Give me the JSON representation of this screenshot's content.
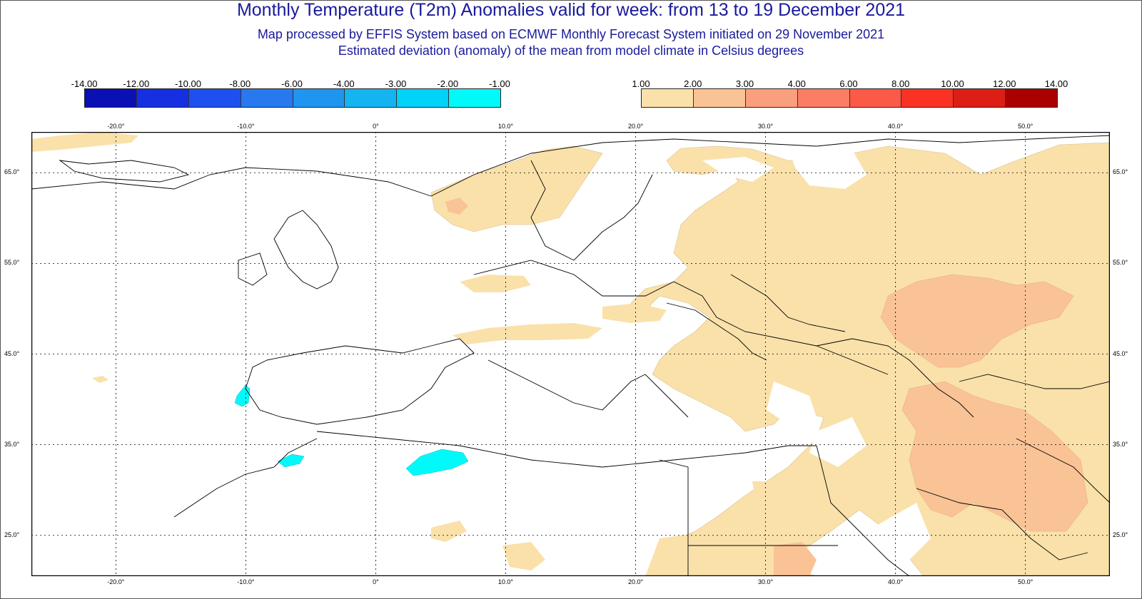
{
  "title": "Monthly Temperature (T2m) Anomalies valid for week: from 13 to 19 December 2021",
  "subtitle1": "Map processed by EFFIS System based on ECMWF Monthly Forecast System initiated on 29 November 2021",
  "subtitle2": "Estimated deviation (anomaly) of the mean from model climate in Celsius degrees",
  "legend_cold": {
    "labels": [
      "-14.00",
      "-12.00",
      "-10.00",
      "-8.00",
      "-6.00",
      "-4.00",
      "-3.00",
      "-2.00",
      "-1.00"
    ],
    "colors": [
      "#0a10b4",
      "#1430e0",
      "#1e50f0",
      "#2878f0",
      "#1e96f0",
      "#14b4f0",
      "#00d2f8",
      "#00fafa"
    ]
  },
  "legend_warm": {
    "labels": [
      "1.00",
      "2.00",
      "3.00",
      "4.00",
      "6.00",
      "8.00",
      "10.00",
      "12.00",
      "14.00"
    ],
    "colors": [
      "#fae1aa",
      "#fac396",
      "#fa9f7d",
      "#fa7d64",
      "#fa5a46",
      "#fa3223",
      "#dc1e14",
      "#aa0000"
    ]
  },
  "map": {
    "lon_labels": [
      "-20.0°",
      "-10.0°",
      "0°",
      "10.0°",
      "20.0°",
      "30.0°",
      "40.0°",
      "50.0°"
    ],
    "lon_values": [
      -20,
      -10,
      0,
      10,
      20,
      30,
      40,
      50
    ],
    "lat_labels": [
      "65.0°",
      "55.0°",
      "45.0°",
      "35.0°",
      "25.0°"
    ],
    "lat_values": [
      65,
      55,
      45,
      35,
      25
    ],
    "lon_range": [
      -26.5,
      56.5
    ],
    "lat_range": [
      20.5,
      69.5
    ],
    "land_color": "#ffffff",
    "warm1_color": "#fae1aa",
    "warm2_color": "#fac396",
    "cold_color": "#00fafa"
  }
}
